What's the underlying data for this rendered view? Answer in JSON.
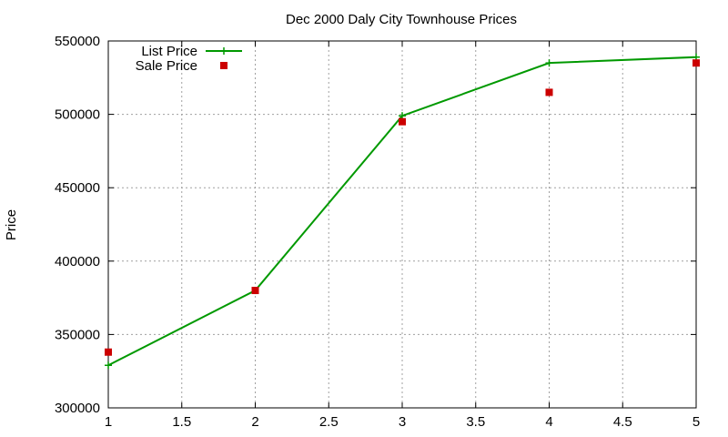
{
  "chart_data": {
    "type": "line",
    "title": "Dec 2000 Daly City Townhouse Prices",
    "xlabel": "",
    "ylabel": "Price",
    "xlim": [
      1,
      5
    ],
    "ylim": [
      300000,
      550000
    ],
    "xticks": [
      1,
      1.5,
      2,
      2.5,
      3,
      3.5,
      4,
      4.5,
      5
    ],
    "yticks": [
      300000,
      350000,
      400000,
      450000,
      500000,
      550000
    ],
    "grid": true,
    "legend_position": "top-left",
    "series": [
      {
        "name": "List Price",
        "kind": "line-with-plus-markers",
        "color": "#009900",
        "x": [
          1,
          2,
          3,
          4,
          5
        ],
        "y": [
          329000,
          380000,
          499000,
          535000,
          539000
        ]
      },
      {
        "name": "Sale Price",
        "kind": "square-markers",
        "color": "#cc0000",
        "x": [
          1,
          2,
          3,
          4,
          5
        ],
        "y": [
          338000,
          380000,
          495000,
          515000,
          535000
        ]
      }
    ]
  }
}
